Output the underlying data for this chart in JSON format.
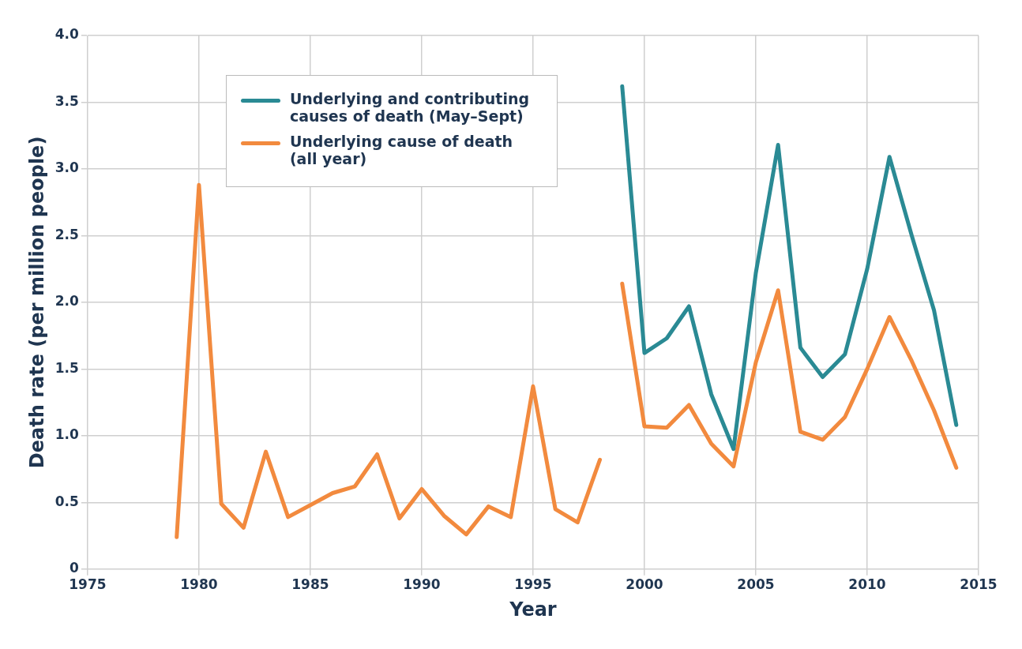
{
  "chart_data": {
    "type": "line",
    "xlabel": "Year",
    "ylabel": "Death rate (per million people)",
    "xlim": [
      1975,
      2015
    ],
    "xticks": [
      1975,
      1980,
      1985,
      1990,
      1995,
      2000,
      2005,
      2010,
      2015
    ],
    "ylim": [
      0,
      4
    ],
    "yticks": [
      0,
      0.5,
      {
        "value": 1,
        "label": "1.0"
      },
      1.5,
      {
        "value": 2,
        "label": "2.0"
      },
      2.5,
      {
        "value": 3,
        "label": "3.0"
      },
      3.5,
      {
        "value": 4,
        "label": "4.0"
      }
    ],
    "grid": true,
    "legend": "top left",
    "marker": "none",
    "line_style": "solid",
    "series": [
      {
        "name": "Underlying and contributing causes of death (May–Sept)",
        "color": "#2a8a94",
        "x": [
          1999,
          2000,
          2001,
          2002,
          2003,
          2004,
          2005,
          2006,
          2007,
          2008,
          2009,
          2010,
          2011,
          2012,
          2013,
          2014
        ],
        "values": [
          3.62,
          1.62,
          1.73,
          1.97,
          1.31,
          0.9,
          2.22,
          3.18,
          1.66,
          1.44,
          1.61,
          2.25,
          3.09,
          2.5,
          1.94,
          1.08
        ]
      },
      {
        "name": "Underlying cause of death (all year)",
        "color": "#f28a3e",
        "x": [
          1979,
          1980,
          1981,
          1982,
          1983,
          1984,
          1985,
          1986,
          1987,
          1988,
          1989,
          1990,
          1991,
          1992,
          1993,
          1994,
          1995,
          1996,
          1997,
          1998
        ],
        "values": [
          0.24,
          2.88,
          0.49,
          0.31,
          0.88,
          0.39,
          0.48,
          0.57,
          0.62,
          0.86,
          0.38,
          0.6,
          0.4,
          0.26,
          0.47,
          0.39,
          1.37,
          0.45,
          0.35,
          0.82
        ]
      },
      {
        "color": "#f28a3e",
        "x": [
          1999,
          2000,
          2001,
          2002,
          2003,
          2004,
          2005,
          2006,
          2007,
          2008,
          2009,
          2010,
          2011,
          2012,
          2013,
          2014
        ],
        "values": [
          2.14,
          1.07,
          1.06,
          1.23,
          0.94,
          0.77,
          1.55,
          2.09,
          1.03,
          0.97,
          1.14,
          1.5,
          1.89,
          1.56,
          1.19,
          0.76
        ]
      }
    ]
  }
}
